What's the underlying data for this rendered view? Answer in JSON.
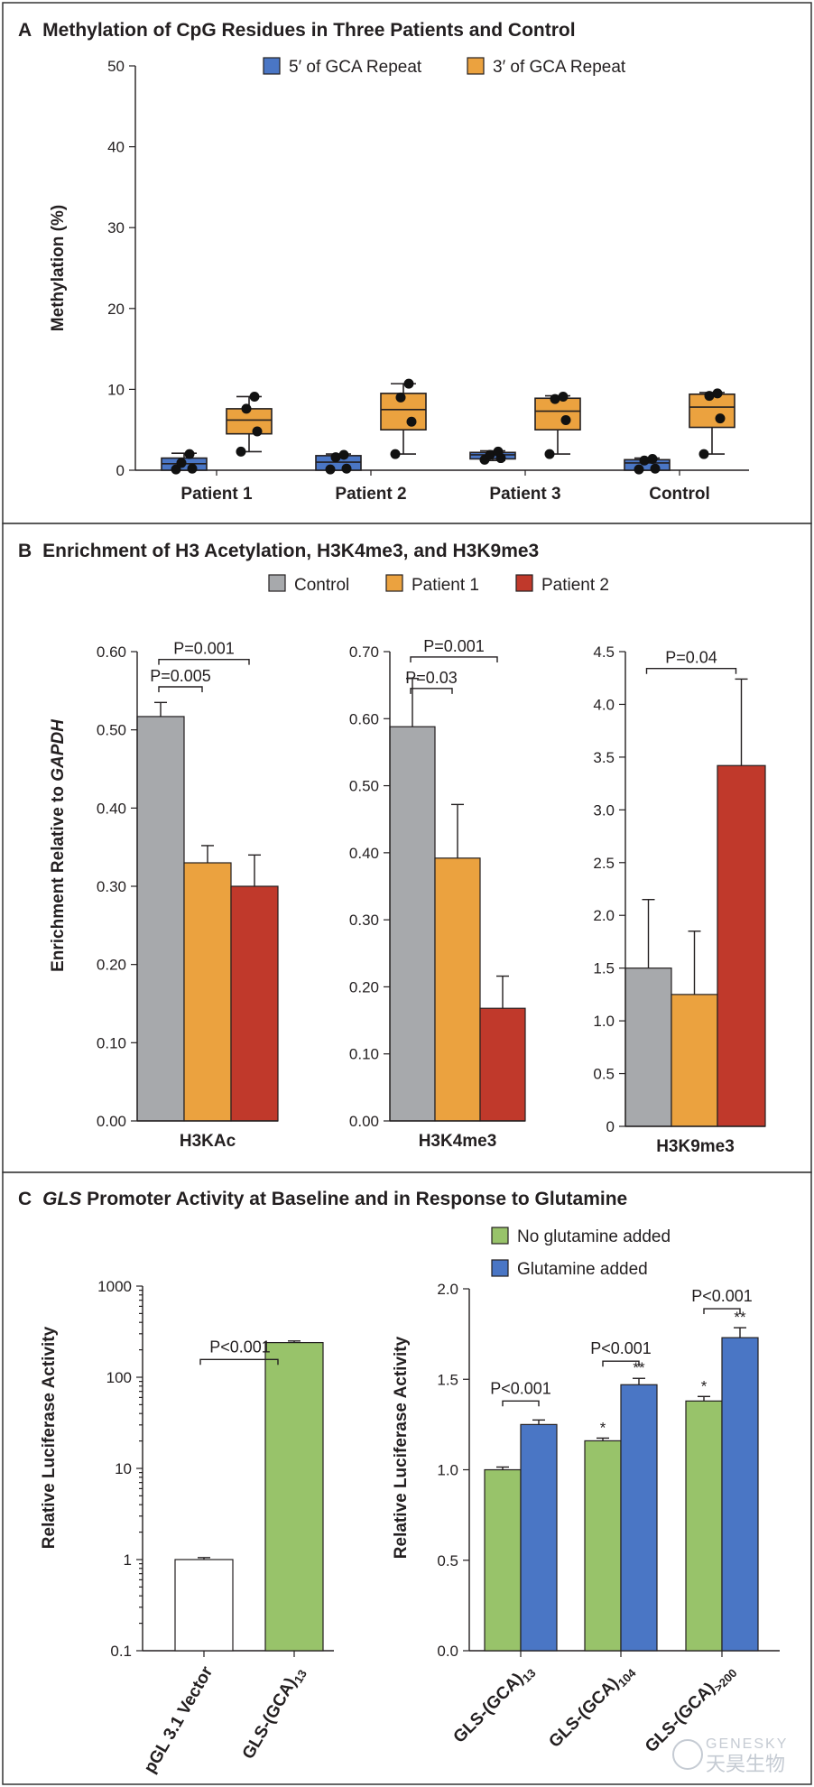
{
  "panels": {
    "A": {
      "letter": "A",
      "title": "Methylation of CpG Residues in Three Patients and Control"
    },
    "B": {
      "letter": "B",
      "title": "Enrichment of H3 Acetylation, H3K4me3, and H3K9me3"
    },
    "C": {
      "letter": "C",
      "title_italic": "GLS",
      "title_rest": " Promoter Activity at Baseline and in Response to Glutamine"
    }
  },
  "colors": {
    "blue": "#4a76c5",
    "orange": "#eba23f",
    "gray": "#a7a9ac",
    "red": "#c0392b",
    "green": "#98c36a",
    "white": "#ffffff"
  },
  "watermark": {
    "text": "GENESKY",
    "cn": "天昊生物"
  },
  "chart_data": [
    {
      "id": "A",
      "type": "box",
      "ylabel": "Methylation (%)",
      "ylim": [
        0,
        50
      ],
      "yticks": [
        0,
        10,
        20,
        30,
        40,
        50
      ],
      "categories": [
        "Patient 1",
        "Patient 2",
        "Patient 3",
        "Control"
      ],
      "legend_position": "top",
      "series": [
        {
          "name": "5′ of GCA Repeat",
          "color": "#4a76c5",
          "boxes": [
            {
              "min": 0,
              "q1": 0,
              "median": 0.8,
              "q3": 1.5,
              "max": 2.1,
              "points": [
                0.1,
                0.2,
                0.9,
                2.0
              ]
            },
            {
              "min": 0,
              "q1": 0,
              "median": 1.0,
              "q3": 1.8,
              "max": 2.0,
              "points": [
                0.1,
                0.2,
                1.6,
                1.9
              ]
            },
            {
              "min": 1.2,
              "q1": 1.4,
              "median": 1.9,
              "q3": 2.2,
              "max": 2.4,
              "points": [
                1.3,
                1.5,
                1.9,
                2.3
              ]
            },
            {
              "min": 0,
              "q1": 0,
              "median": 0.9,
              "q3": 1.3,
              "max": 1.5,
              "points": [
                0.1,
                0.2,
                1.2,
                1.4
              ]
            }
          ]
        },
        {
          "name": "3′ of GCA Repeat",
          "color": "#eba23f",
          "boxes": [
            {
              "min": 2.3,
              "q1": 4.5,
              "median": 6.2,
              "q3": 7.6,
              "max": 9.1,
              "points": [
                2.3,
                4.8,
                7.6,
                9.1
              ]
            },
            {
              "min": 2.0,
              "q1": 5.0,
              "median": 7.5,
              "q3": 9.5,
              "max": 10.7,
              "points": [
                2.0,
                6.0,
                9.0,
                10.7
              ]
            },
            {
              "min": 2.0,
              "q1": 5.0,
              "median": 7.3,
              "q3": 8.9,
              "max": 9.2,
              "points": [
                2.0,
                6.2,
                8.8,
                9.1
              ]
            },
            {
              "min": 2.0,
              "q1": 5.3,
              "median": 7.8,
              "q3": 9.4,
              "max": 9.6,
              "points": [
                2.0,
                6.4,
                9.2,
                9.5
              ]
            }
          ]
        }
      ]
    },
    {
      "id": "B",
      "type": "bar",
      "ylabel_prefix": "Enrichment Relative to ",
      "ylabel_italic": "GAPDH",
      "legend_position": "top",
      "legend": [
        {
          "name": "Control",
          "color": "#a7a9ac"
        },
        {
          "name": "Patient 1",
          "color": "#eba23f"
        },
        {
          "name": "Patient 2",
          "color": "#c0392b"
        }
      ],
      "subplots": [
        {
          "xlabel": "H3KAc",
          "ylim": [
            0,
            0.6
          ],
          "yticks": [
            "0.00",
            "0.10",
            "0.20",
            "0.30",
            "0.40",
            "0.50",
            "0.60"
          ],
          "values": [
            0.517,
            0.33,
            0.3
          ],
          "errors": [
            0.018,
            0.022,
            0.04
          ],
          "comparisons": [
            {
              "from": 0,
              "to": 1,
              "label": "P=0.005",
              "level": 0.555
            },
            {
              "from": 0,
              "to": 2,
              "label": "P=0.001",
              "level": 0.59
            }
          ]
        },
        {
          "xlabel": "H3K4me3",
          "ylim": [
            0,
            0.7
          ],
          "yticks": [
            "0.00",
            "0.10",
            "0.20",
            "0.30",
            "0.40",
            "0.50",
            "0.60",
            "0.70"
          ],
          "values": [
            0.588,
            0.392,
            0.168
          ],
          "errors": [
            0.072,
            0.08,
            0.048
          ],
          "comparisons": [
            {
              "from": 0,
              "to": 1,
              "label": "P=0.03",
              "level": 0.645
            },
            {
              "from": 0,
              "to": 2,
              "label": "P=0.001",
              "level": 0.692
            }
          ]
        },
        {
          "xlabel": "H3K9me3",
          "ylim": [
            0,
            4.5
          ],
          "yticks": [
            "0",
            "0.5",
            "1.0",
            "1.5",
            "2.0",
            "2.5",
            "3.0",
            "3.5",
            "4.0",
            "4.5"
          ],
          "values": [
            1.5,
            1.25,
            3.42
          ],
          "errors": [
            0.65,
            0.6,
            0.82
          ],
          "comparisons": [
            {
              "from": 0,
              "to": 2,
              "label": "P=0.04",
              "level": 4.34
            }
          ]
        }
      ]
    },
    {
      "id": "C-left",
      "type": "bar",
      "yscale": "log",
      "ylabel": "Relative Luciferase Activity",
      "ylim": [
        0.1,
        1000
      ],
      "yticks": [
        "0.1",
        "1",
        "10",
        "100",
        "1000"
      ],
      "categories": [
        {
          "main": "pGL 3.1 Vector",
          "sub": ""
        },
        {
          "main": "GLS-(GCA)",
          "sub": "13"
        }
      ],
      "values": [
        1.0,
        240
      ],
      "errors": [
        0.05,
        10
      ],
      "colors": [
        "#ffffff",
        "#98c36a"
      ],
      "comparisons": [
        {
          "from": 0,
          "to": 1,
          "label": "P<0.001",
          "level": 390
        }
      ]
    },
    {
      "id": "C-right",
      "type": "bar",
      "ylabel": "Relative Luciferase Activity",
      "ylim": [
        0,
        2.0
      ],
      "yticks": [
        "0.0",
        "0.5",
        "1.0",
        "1.5",
        "2.0"
      ],
      "legend_position": "top",
      "categories": [
        {
          "main": "GLS-(GCA)",
          "sub": "13"
        },
        {
          "main": "GLS-(GCA)",
          "sub": "104"
        },
        {
          "main": "GLS-(GCA)",
          "sub": ">200"
        }
      ],
      "series": [
        {
          "name": "No glutamine added",
          "color": "#98c36a",
          "values": [
            1.0,
            1.16,
            1.38
          ],
          "errors": [
            0.015,
            0.015,
            0.025
          ],
          "stars": [
            "",
            "*",
            "*"
          ]
        },
        {
          "name": "Glutamine added",
          "color": "#4a76c5",
          "values": [
            1.25,
            1.47,
            1.73
          ],
          "errors": [
            0.025,
            0.035,
            0.055
          ],
          "stars": [
            "",
            "**",
            "**"
          ]
        }
      ],
      "comparisons": [
        {
          "group": 0,
          "label": "P<0.001",
          "level": 1.38
        },
        {
          "group": 1,
          "label": "P<0.001",
          "level": 1.6
        },
        {
          "group": 2,
          "label": "P<0.001",
          "level": 1.89
        }
      ]
    }
  ]
}
